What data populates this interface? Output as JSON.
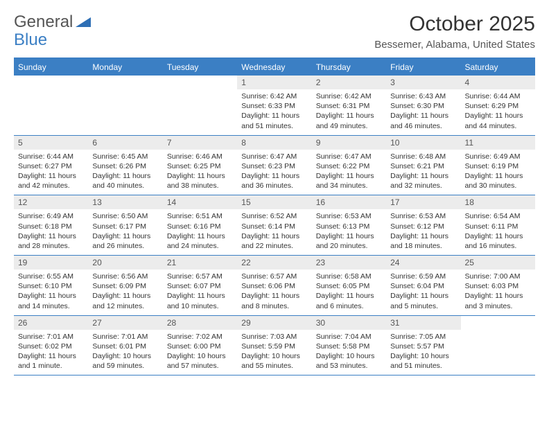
{
  "brand": {
    "part1": "General",
    "part2": "Blue"
  },
  "title": "October 2025",
  "location": "Bessemer, Alabama, United States",
  "colors": {
    "accent": "#3b7fc4",
    "header_text": "#ffffff",
    "daynum_bg": "#ececec",
    "text": "#333333",
    "muted": "#555555",
    "background": "#ffffff"
  },
  "days_of_week": [
    "Sunday",
    "Monday",
    "Tuesday",
    "Wednesday",
    "Thursday",
    "Friday",
    "Saturday"
  ],
  "weeks": [
    [
      {
        "n": "",
        "sr": "",
        "ss": "",
        "dl": ""
      },
      {
        "n": "",
        "sr": "",
        "ss": "",
        "dl": ""
      },
      {
        "n": "",
        "sr": "",
        "ss": "",
        "dl": ""
      },
      {
        "n": "1",
        "sr": "Sunrise: 6:42 AM",
        "ss": "Sunset: 6:33 PM",
        "dl": "Daylight: 11 hours and 51 minutes."
      },
      {
        "n": "2",
        "sr": "Sunrise: 6:42 AM",
        "ss": "Sunset: 6:31 PM",
        "dl": "Daylight: 11 hours and 49 minutes."
      },
      {
        "n": "3",
        "sr": "Sunrise: 6:43 AM",
        "ss": "Sunset: 6:30 PM",
        "dl": "Daylight: 11 hours and 46 minutes."
      },
      {
        "n": "4",
        "sr": "Sunrise: 6:44 AM",
        "ss": "Sunset: 6:29 PM",
        "dl": "Daylight: 11 hours and 44 minutes."
      }
    ],
    [
      {
        "n": "5",
        "sr": "Sunrise: 6:44 AM",
        "ss": "Sunset: 6:27 PM",
        "dl": "Daylight: 11 hours and 42 minutes."
      },
      {
        "n": "6",
        "sr": "Sunrise: 6:45 AM",
        "ss": "Sunset: 6:26 PM",
        "dl": "Daylight: 11 hours and 40 minutes."
      },
      {
        "n": "7",
        "sr": "Sunrise: 6:46 AM",
        "ss": "Sunset: 6:25 PM",
        "dl": "Daylight: 11 hours and 38 minutes."
      },
      {
        "n": "8",
        "sr": "Sunrise: 6:47 AM",
        "ss": "Sunset: 6:23 PM",
        "dl": "Daylight: 11 hours and 36 minutes."
      },
      {
        "n": "9",
        "sr": "Sunrise: 6:47 AM",
        "ss": "Sunset: 6:22 PM",
        "dl": "Daylight: 11 hours and 34 minutes."
      },
      {
        "n": "10",
        "sr": "Sunrise: 6:48 AM",
        "ss": "Sunset: 6:21 PM",
        "dl": "Daylight: 11 hours and 32 minutes."
      },
      {
        "n": "11",
        "sr": "Sunrise: 6:49 AM",
        "ss": "Sunset: 6:19 PM",
        "dl": "Daylight: 11 hours and 30 minutes."
      }
    ],
    [
      {
        "n": "12",
        "sr": "Sunrise: 6:49 AM",
        "ss": "Sunset: 6:18 PM",
        "dl": "Daylight: 11 hours and 28 minutes."
      },
      {
        "n": "13",
        "sr": "Sunrise: 6:50 AM",
        "ss": "Sunset: 6:17 PM",
        "dl": "Daylight: 11 hours and 26 minutes."
      },
      {
        "n": "14",
        "sr": "Sunrise: 6:51 AM",
        "ss": "Sunset: 6:16 PM",
        "dl": "Daylight: 11 hours and 24 minutes."
      },
      {
        "n": "15",
        "sr": "Sunrise: 6:52 AM",
        "ss": "Sunset: 6:14 PM",
        "dl": "Daylight: 11 hours and 22 minutes."
      },
      {
        "n": "16",
        "sr": "Sunrise: 6:53 AM",
        "ss": "Sunset: 6:13 PM",
        "dl": "Daylight: 11 hours and 20 minutes."
      },
      {
        "n": "17",
        "sr": "Sunrise: 6:53 AM",
        "ss": "Sunset: 6:12 PM",
        "dl": "Daylight: 11 hours and 18 minutes."
      },
      {
        "n": "18",
        "sr": "Sunrise: 6:54 AM",
        "ss": "Sunset: 6:11 PM",
        "dl": "Daylight: 11 hours and 16 minutes."
      }
    ],
    [
      {
        "n": "19",
        "sr": "Sunrise: 6:55 AM",
        "ss": "Sunset: 6:10 PM",
        "dl": "Daylight: 11 hours and 14 minutes."
      },
      {
        "n": "20",
        "sr": "Sunrise: 6:56 AM",
        "ss": "Sunset: 6:09 PM",
        "dl": "Daylight: 11 hours and 12 minutes."
      },
      {
        "n": "21",
        "sr": "Sunrise: 6:57 AM",
        "ss": "Sunset: 6:07 PM",
        "dl": "Daylight: 11 hours and 10 minutes."
      },
      {
        "n": "22",
        "sr": "Sunrise: 6:57 AM",
        "ss": "Sunset: 6:06 PM",
        "dl": "Daylight: 11 hours and 8 minutes."
      },
      {
        "n": "23",
        "sr": "Sunrise: 6:58 AM",
        "ss": "Sunset: 6:05 PM",
        "dl": "Daylight: 11 hours and 6 minutes."
      },
      {
        "n": "24",
        "sr": "Sunrise: 6:59 AM",
        "ss": "Sunset: 6:04 PM",
        "dl": "Daylight: 11 hours and 5 minutes."
      },
      {
        "n": "25",
        "sr": "Sunrise: 7:00 AM",
        "ss": "Sunset: 6:03 PM",
        "dl": "Daylight: 11 hours and 3 minutes."
      }
    ],
    [
      {
        "n": "26",
        "sr": "Sunrise: 7:01 AM",
        "ss": "Sunset: 6:02 PM",
        "dl": "Daylight: 11 hours and 1 minute."
      },
      {
        "n": "27",
        "sr": "Sunrise: 7:01 AM",
        "ss": "Sunset: 6:01 PM",
        "dl": "Daylight: 10 hours and 59 minutes."
      },
      {
        "n": "28",
        "sr": "Sunrise: 7:02 AM",
        "ss": "Sunset: 6:00 PM",
        "dl": "Daylight: 10 hours and 57 minutes."
      },
      {
        "n": "29",
        "sr": "Sunrise: 7:03 AM",
        "ss": "Sunset: 5:59 PM",
        "dl": "Daylight: 10 hours and 55 minutes."
      },
      {
        "n": "30",
        "sr": "Sunrise: 7:04 AM",
        "ss": "Sunset: 5:58 PM",
        "dl": "Daylight: 10 hours and 53 minutes."
      },
      {
        "n": "31",
        "sr": "Sunrise: 7:05 AM",
        "ss": "Sunset: 5:57 PM",
        "dl": "Daylight: 10 hours and 51 minutes."
      },
      {
        "n": "",
        "sr": "",
        "ss": "",
        "dl": ""
      }
    ]
  ]
}
